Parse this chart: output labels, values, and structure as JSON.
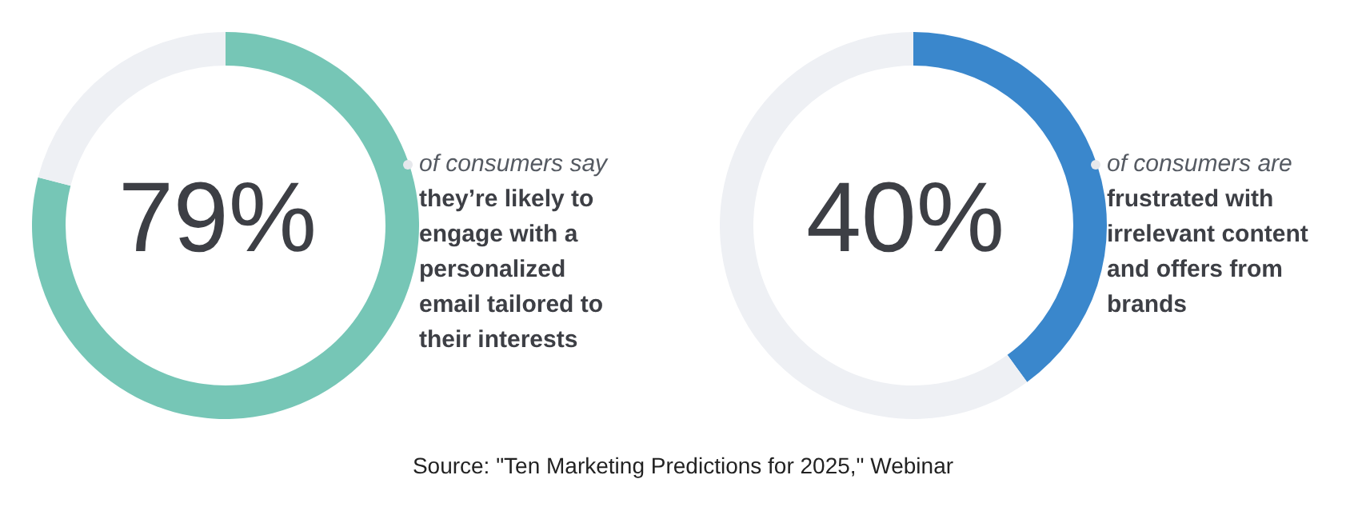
{
  "chart_data": [
    {
      "type": "donut",
      "categories": [
        null,
        null
      ],
      "values": [
        79,
        21
      ],
      "colors": [
        "#76c6b6",
        "#eef0f4"
      ],
      "annotations": [
        "of consumers say",
        "they’re likely to engage with a personalized email tailored to their interests",
        "Source: \"Ten Marketing Predictions for 2025,\" Webinar",
        "79%"
      ]
    },
    {
      "type": "donut",
      "categories": [
        null,
        null
      ],
      "values": [
        40,
        60
      ],
      "colors": [
        "#3a87cc",
        "#eef0f4"
      ],
      "annotations": [
        "of consumers are",
        "frustrated with irrelevant content and offers from brands",
        null,
        "40%"
      ]
    }
  ]
}
